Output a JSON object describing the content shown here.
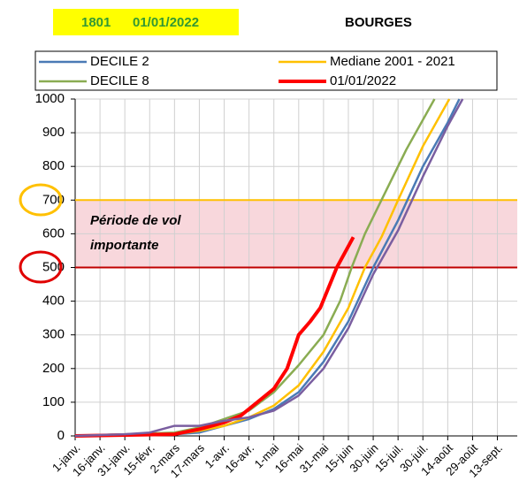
{
  "header": {
    "code": "1801",
    "date": "01/01/2022",
    "place": "BOURGES"
  },
  "chart_data": {
    "type": "line",
    "annotation": [
      "Période de vol",
      "importante"
    ],
    "xlim": [
      0,
      267
    ],
    "xticks": [
      {
        "value": 0,
        "label": "1-janv."
      },
      {
        "value": 15,
        "label": "16-janv."
      },
      {
        "value": 30,
        "label": "31-janv."
      },
      {
        "value": 45,
        "label": "15-févr."
      },
      {
        "value": 60,
        "label": "2-mars"
      },
      {
        "value": 75,
        "label": "17-mars"
      },
      {
        "value": 90,
        "label": "1-avr."
      },
      {
        "value": 105,
        "label": "16-avr."
      },
      {
        "value": 120,
        "label": "1-mai"
      },
      {
        "value": 135,
        "label": "16-mai"
      },
      {
        "value": 150,
        "label": "31-mai"
      },
      {
        "value": 165,
        "label": "15-juin"
      },
      {
        "value": 180,
        "label": "30-juin"
      },
      {
        "value": 195,
        "label": "15-juil."
      },
      {
        "value": 210,
        "label": "30-juil."
      },
      {
        "value": 225,
        "label": "14-août"
      },
      {
        "value": 240,
        "label": "29-août"
      },
      {
        "value": 255,
        "label": "13-sept."
      }
    ],
    "ylim": [
      0,
      1000
    ],
    "yticks": [
      0,
      100,
      200,
      300,
      400,
      500,
      600,
      700,
      800,
      900,
      1000
    ],
    "grid": true,
    "hlines": [
      {
        "value": 700,
        "color": "#ffc000"
      },
      {
        "value": 500,
        "color": "#c00000"
      }
    ],
    "band_color": "#f8d7dc",
    "series": [
      {
        "name": "DECILE 2",
        "color": "#4a7ab5",
        "width": 2.5,
        "x": [
          0,
          30,
          60,
          75,
          90,
          105,
          120,
          135,
          150,
          165,
          180,
          195,
          210,
          225,
          232
        ],
        "values": [
          0,
          2,
          5,
          10,
          30,
          50,
          80,
          130,
          220,
          340,
          500,
          640,
          800,
          930,
          1000
        ]
      },
      {
        "name": "Mediane 2001 - 2021",
        "color": "#ffc000",
        "width": 2.5,
        "x": [
          0,
          30,
          60,
          75,
          90,
          105,
          120,
          135,
          150,
          165,
          175,
          185,
          195,
          210,
          226
        ],
        "values": [
          0,
          3,
          5,
          15,
          30,
          55,
          90,
          150,
          250,
          380,
          500,
          590,
          700,
          860,
          1000
        ]
      },
      {
        "name": "DECILE 8",
        "color": "#8aac52",
        "width": 2.5,
        "x": [
          0,
          30,
          60,
          75,
          90,
          105,
          120,
          135,
          150,
          160,
          167,
          175,
          185,
          200,
          217
        ],
        "values": [
          0,
          5,
          10,
          25,
          50,
          75,
          130,
          210,
          300,
          400,
          500,
          600,
          700,
          850,
          1000
        ]
      },
      {
        "name": "01/01/2022",
        "color": "#ff0000",
        "width": 4,
        "x": [
          0,
          60,
          75,
          90,
          100,
          110,
          120,
          128,
          135,
          142,
          148,
          158,
          168
        ],
        "values": [
          0,
          5,
          20,
          40,
          60,
          100,
          140,
          200,
          300,
          340,
          380,
          500,
          590
        ]
      },
      {
        "color": "#7a5ea0",
        "width": 2.5,
        "x": [
          0,
          30,
          45,
          60,
          75,
          90,
          105,
          120,
          135,
          150,
          165,
          180,
          195,
          210,
          225,
          234
        ],
        "values": [
          0,
          5,
          10,
          30,
          30,
          45,
          55,
          75,
          120,
          200,
          320,
          480,
          610,
          770,
          920,
          1000
        ]
      }
    ]
  }
}
